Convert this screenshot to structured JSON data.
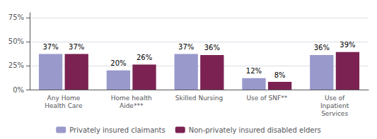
{
  "chart_data": {
    "type": "bar",
    "categories": [
      "Any Home\nHealth Care",
      "Home health\nAide***",
      "Skilled Nursing",
      "Use of SNF**",
      "Use of\nInpatient\nServices"
    ],
    "series": [
      {
        "name": "Privately insured claimants",
        "color": "#9999CC",
        "values": [
          37,
          20,
          37,
          12,
          36
        ],
        "value_labels": [
          "37%",
          "20%",
          "37%",
          "12%",
          "36%"
        ]
      },
      {
        "name": "Non-privately insured disabled elders",
        "color": "#7B2252",
        "values": [
          37,
          26,
          36,
          8,
          39
        ],
        "value_labels": [
          "37%",
          "26%",
          "36%",
          "8%",
          "39%"
        ]
      }
    ],
    "ylim": [
      0,
      80
    ],
    "yticks": [
      {
        "value": 0,
        "label": "0%"
      },
      {
        "value": 25,
        "label": "25%"
      },
      {
        "value": 50,
        "label": "50%"
      },
      {
        "value": 75,
        "label": "75%"
      }
    ],
    "grid": true,
    "data_labels": true,
    "legend": "bottom"
  }
}
